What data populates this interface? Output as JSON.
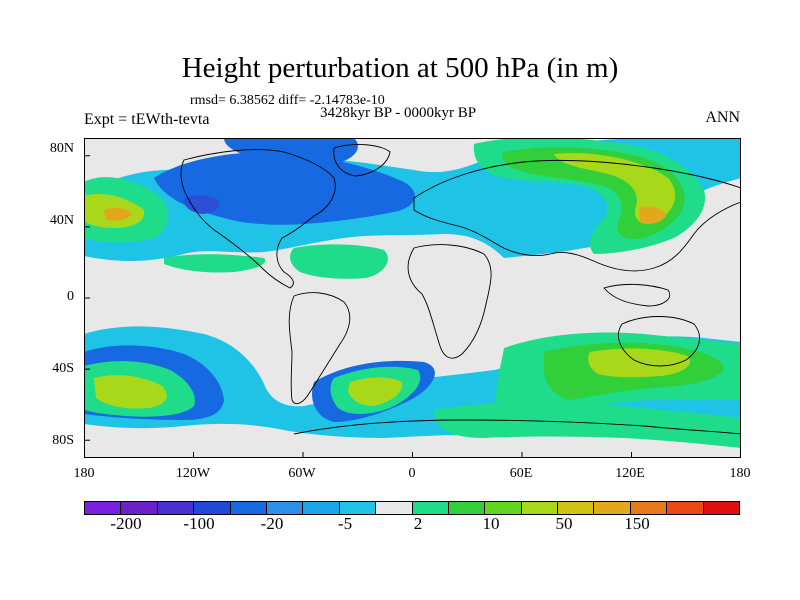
{
  "header": {
    "title": "Height perturbation at 500 hPa (in m)",
    "stats": "rmsd= 6.38562 diff= -2.14783e-10",
    "expt": "Expt = tEWth-tevta",
    "period": "3428kyr BP - 0000kyr BP",
    "season": "ANN"
  },
  "axes": {
    "lat_labels": [
      "80N",
      "40N",
      "0",
      "40S",
      "80S"
    ],
    "lat_values": [
      80,
      40,
      0,
      -40,
      -80
    ],
    "lon_labels": [
      "180",
      "120W",
      "60W",
      "0",
      "60E",
      "120E",
      "180"
    ],
    "lon_values": [
      -180,
      -120,
      -60,
      0,
      60,
      120,
      180
    ],
    "lon_range": [
      -180,
      180
    ],
    "lat_range": [
      -90,
      90
    ]
  },
  "colorbar": {
    "labels": [
      "-200",
      "-100",
      "-20",
      "-5",
      "2",
      "10",
      "50",
      "150"
    ],
    "colors": [
      "#7a1fe0",
      "#6a22c8",
      "#4b2fd0",
      "#1f49d8",
      "#1669e0",
      "#2e8fe8",
      "#1aa6e8",
      "#1ec3e6",
      "#e8e8e8",
      "#1fdc8a",
      "#31cf3a",
      "#62d61c",
      "#a8d81a",
      "#d2c214",
      "#e0a81a",
      "#e67a1a",
      "#e94a14",
      "#e01010"
    ]
  },
  "map": {
    "background_color": "#e8e8e8",
    "colors": {
      "lightblue": "#1ec3e6",
      "blue": "#1669e0",
      "darkblue": "#2b4fd6",
      "seagreen": "#1fdc8a",
      "green": "#31cf3a",
      "yellowgreen": "#a8d81a",
      "orange": "#e0a81a"
    }
  }
}
